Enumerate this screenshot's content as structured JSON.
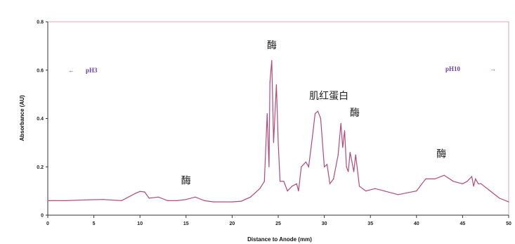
{
  "chart_data": {
    "type": "line",
    "title": "",
    "xlabel": "Distance to Anode (mm)",
    "ylabel": "Absorbance (AU)",
    "xlim": [
      0,
      50
    ],
    "ylim": [
      0,
      0.8
    ],
    "xticks": [
      "0",
      "5",
      "10",
      "15",
      "20",
      "25",
      "30",
      "35",
      "40",
      "45",
      "50"
    ],
    "yticks": [
      "0",
      "0.2",
      "0.4",
      "0.6",
      "0.8"
    ],
    "grid": false,
    "line_color": "#b04a7a",
    "frame_color": "#d9a7bf",
    "series": [
      {
        "x": [
          0,
          2,
          4,
          6,
          8,
          9.5,
          10,
          10.5,
          11,
          12,
          13,
          14,
          15,
          16,
          17,
          18,
          20,
          21,
          22,
          23,
          23.5,
          23.8,
          24.0,
          24.1,
          24.3,
          24.5,
          24.8,
          25.0,
          25.2,
          25.6,
          26.0,
          26.5,
          27.0,
          27.2,
          27.5,
          28.0,
          28.3,
          28.7,
          29.0,
          29.3,
          29.6,
          30.0,
          30.3,
          30.6,
          31.0,
          31.5,
          31.8,
          32.0,
          32.2,
          32.4,
          32.6,
          32.8,
          33.0,
          33.2,
          33.4,
          33.8,
          34.5,
          35.5,
          36.5,
          38,
          40,
          41,
          42,
          43,
          44,
          45,
          45.5,
          46,
          46.2,
          46.4,
          46.7,
          47,
          48,
          49,
          50
        ],
        "y": [
          0.06,
          0.06,
          0.063,
          0.065,
          0.06,
          0.09,
          0.098,
          0.096,
          0.07,
          0.075,
          0.06,
          0.06,
          0.065,
          0.075,
          0.06,
          0.055,
          0.055,
          0.058,
          0.075,
          0.11,
          0.14,
          0.42,
          0.2,
          0.55,
          0.64,
          0.3,
          0.54,
          0.3,
          0.14,
          0.14,
          0.1,
          0.12,
          0.13,
          0.1,
          0.2,
          0.22,
          0.2,
          0.32,
          0.42,
          0.43,
          0.4,
          0.2,
          0.21,
          0.13,
          0.15,
          0.25,
          0.38,
          0.28,
          0.35,
          0.2,
          0.18,
          0.26,
          0.22,
          0.18,
          0.25,
          0.12,
          0.1,
          0.11,
          0.1,
          0.085,
          0.1,
          0.15,
          0.15,
          0.165,
          0.14,
          0.13,
          0.14,
          0.16,
          0.12,
          0.15,
          0.13,
          0.13,
          0.1,
          0.07,
          0.055
        ]
      }
    ],
    "annotations": [
      {
        "text": "酶",
        "x": 15,
        "y": 0.13
      },
      {
        "text": "酶",
        "x": 24.3,
        "y": 0.69
      },
      {
        "text": "肌红蛋白",
        "x": 30.5,
        "y": 0.48
      },
      {
        "text": "酶",
        "x": 33.3,
        "y": 0.41
      },
      {
        "text": "酶",
        "x": 42.7,
        "y": 0.24
      }
    ],
    "ph_labels": {
      "left": {
        "text": "pH3",
        "arrow": "←"
      },
      "right": {
        "text": "pH10",
        "arrow": "→"
      }
    }
  }
}
